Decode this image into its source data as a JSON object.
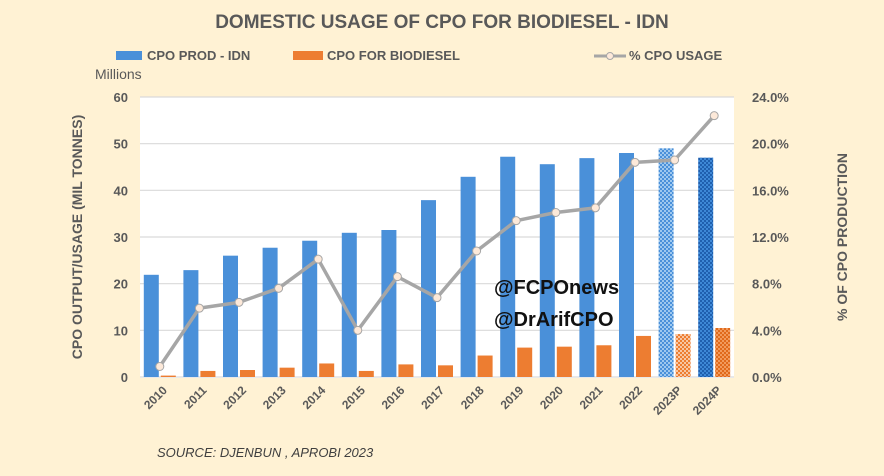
{
  "chart_data": {
    "type": "bar",
    "title": "DOMESTIC USAGE OF CPO FOR BIODIESEL - IDN",
    "units_label": "Millions",
    "ylabel": "CPO OUTPUT/USAGE (MIL TONNES)",
    "y2label": "% OF CPO PRODUCTION",
    "ylim": [
      0,
      60
    ],
    "y2lim": [
      0,
      24
    ],
    "yticks": [
      "0",
      "10",
      "20",
      "30",
      "40",
      "50",
      "60"
    ],
    "y2ticks": [
      "0.0%",
      "4.0%",
      "8.0%",
      "12.0%",
      "16.0%",
      "20.0%",
      "24.0%"
    ],
    "grid": true,
    "legend_position": "top",
    "categories": [
      "2010",
      "2011",
      "2012",
      "2013",
      "2014",
      "2015",
      "2016",
      "2017",
      "2018",
      "2019",
      "2020",
      "2021",
      "2022",
      "2023P",
      "2024P"
    ],
    "series": [
      {
        "name": "CPO PROD - IDN",
        "type": "bar",
        "axis": "left",
        "color": "#4a90d9",
        "values": [
          21.9,
          22.9,
          26.0,
          27.7,
          29.2,
          30.9,
          31.5,
          37.9,
          42.9,
          47.2,
          45.6,
          46.9,
          48.0,
          49.0,
          47.0
        ]
      },
      {
        "name": "CPO FOR BIODIESEL",
        "type": "bar",
        "axis": "left",
        "color": "#ed7d31",
        "values": [
          0.3,
          1.3,
          1.5,
          2.0,
          2.9,
          1.3,
          2.7,
          2.5,
          4.6,
          6.3,
          6.5,
          6.8,
          8.8,
          9.2,
          10.5
        ]
      },
      {
        "name": "% CPO USAGE",
        "type": "line",
        "axis": "right",
        "color": "#a6a6a6",
        "values": [
          0.9,
          5.9,
          6.4,
          7.6,
          10.1,
          4.0,
          8.6,
          6.8,
          10.8,
          13.4,
          14.1,
          14.5,
          18.4,
          18.6,
          22.4
        ]
      }
    ],
    "hatched_categories": [
      "2023P",
      "2024P"
    ],
    "source": "SOURCE: DJENBUN , APROBI 2023",
    "watermark": [
      "@FCPOnews",
      "@DrArifCPO"
    ]
  }
}
